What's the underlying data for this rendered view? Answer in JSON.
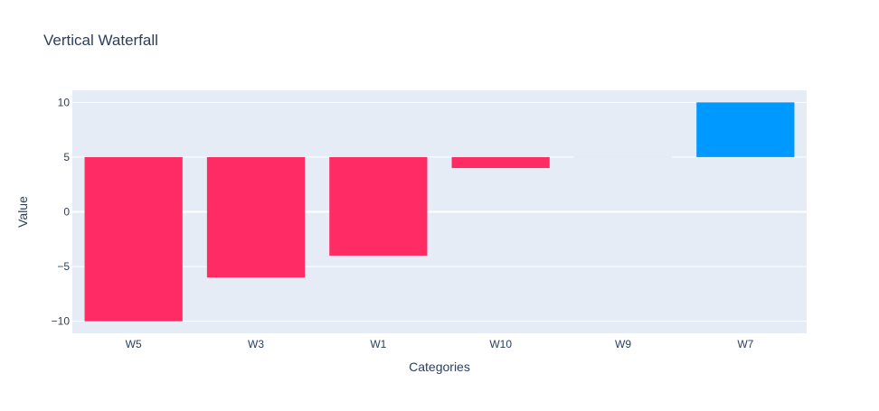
{
  "chart_data": {
    "type": "bar",
    "title": "Vertical Waterfall",
    "xlabel": "Categories",
    "ylabel": "Value",
    "categories": [
      "W5",
      "W3",
      "W1",
      "W10",
      "W9",
      "W7"
    ],
    "bars": [
      {
        "category": "W5",
        "base": 5,
        "end": -10,
        "direction": "decreasing"
      },
      {
        "category": "W3",
        "base": 5,
        "end": -6,
        "direction": "decreasing"
      },
      {
        "category": "W1",
        "base": 5,
        "end": -4,
        "direction": "decreasing"
      },
      {
        "category": "W10",
        "base": 5,
        "end": 4,
        "direction": "decreasing"
      },
      {
        "category": "W9",
        "base": 5,
        "end": 5,
        "direction": "none"
      },
      {
        "category": "W7",
        "base": 5,
        "end": 10,
        "direction": "increasing"
      }
    ],
    "ylim": [
      -11.1,
      11.1
    ],
    "yticks": [
      -10,
      -5,
      0,
      5,
      10
    ],
    "ytick_labels": [
      "−10",
      "−5",
      "0",
      "5",
      "10"
    ],
    "grid": true,
    "colors": {
      "plot_bg": "#e5ecf6",
      "grid": "#ffffff",
      "decreasing": "#ff2b65",
      "increasing": "#0099ff",
      "text": "#2a3f5f"
    }
  }
}
